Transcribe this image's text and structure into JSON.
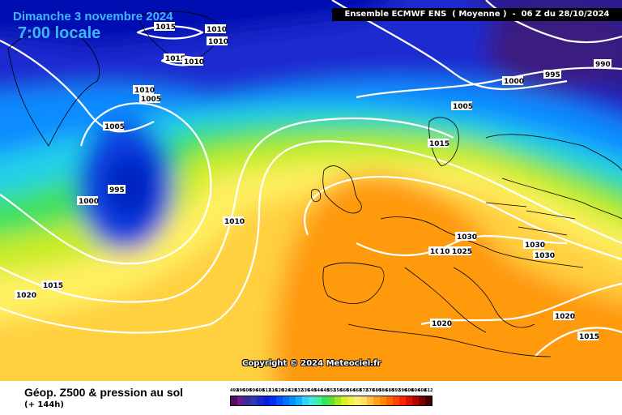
{
  "header": {
    "date": "Dimanche 3 novembre 2024",
    "time": "7:00 locale",
    "model": "Ensemble ECMWF ENS  ( Moyenne )  -  06 Z du 28/10/2024"
  },
  "copyright": "Copyright © 2024 Meteociel.fr",
  "footer": {
    "title": "Géop. Z500 & pression au sol",
    "step": "(+ 144h)"
  },
  "scale": {
    "values": [
      "492",
      "496",
      "500",
      "504",
      "508",
      "512",
      "516",
      "520",
      "524",
      "528",
      "532",
      "536",
      "540",
      "544",
      "548",
      "552",
      "556",
      "560",
      "564",
      "568",
      "572",
      "576",
      "580",
      "584",
      "588",
      "592",
      "596",
      "600",
      "604",
      "608",
      "612"
    ],
    "colors": [
      "#5a0a5a",
      "#6a1a8a",
      "#3a2a9a",
      "#2a3ab0",
      "#1a2ac8",
      "#0a1ae0",
      "#0030f0",
      "#0050ff",
      "#0070ff",
      "#0090ff",
      "#10b0ff",
      "#30d0ff",
      "#40e8e0",
      "#40f0a0",
      "#30e860",
      "#60e030",
      "#a0e820",
      "#d8f020",
      "#f0f040",
      "#fff070",
      "#ffe060",
      "#ffc040",
      "#ffa020",
      "#ff8800",
      "#ff6600",
      "#ff4400",
      "#ff2200",
      "#e01000",
      "#b00800",
      "#800000",
      "#400000"
    ]
  },
  "isobar_labels": [
    {
      "text": "1015"
    },
    {
      "text": "1010"
    },
    {
      "text": "1010"
    },
    {
      "text": "1015"
    },
    {
      "text": "1010"
    },
    {
      "text": "1010"
    },
    {
      "text": "1005"
    },
    {
      "text": "1005"
    },
    {
      "text": "995"
    },
    {
      "text": "1000"
    },
    {
      "text": "1010"
    },
    {
      "text": "1015"
    },
    {
      "text": "1020"
    },
    {
      "text": "1000"
    },
    {
      "text": "995"
    },
    {
      "text": "990"
    },
    {
      "text": "1005"
    },
    {
      "text": "1015"
    },
    {
      "text": "1030"
    },
    {
      "text": "1010"
    },
    {
      "text": "1010"
    },
    {
      "text": "1025"
    },
    {
      "text": "1030"
    },
    {
      "text": "1030"
    },
    {
      "text": "1020"
    },
    {
      "text": "1020"
    },
    {
      "text": "1015"
    }
  ]
}
